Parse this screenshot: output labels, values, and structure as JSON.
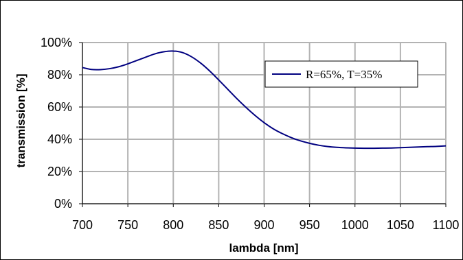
{
  "chart_data": {
    "type": "line",
    "title": "",
    "xlabel": "lambda [nm]",
    "ylabel": "transmission [%]",
    "xlim": [
      700,
      1100
    ],
    "ylim": [
      0,
      100
    ],
    "x_ticks": [
      "700",
      "750",
      "800",
      "850",
      "900",
      "950",
      "1000",
      "1050",
      "1100"
    ],
    "y_ticks": [
      "0%",
      "20%",
      "40%",
      "60%",
      "80%",
      "100%"
    ],
    "grid": true,
    "legend_position": "top-right",
    "series": [
      {
        "name": "R=65%, T=35%",
        "color": "#000080",
        "x": [
          700,
          710,
          720,
          730,
          740,
          750,
          760,
          770,
          780,
          790,
          800,
          810,
          820,
          830,
          840,
          850,
          860,
          870,
          880,
          890,
          900,
          910,
          920,
          930,
          940,
          950,
          960,
          970,
          980,
          990,
          1000,
          1010,
          1020,
          1030,
          1040,
          1050,
          1060,
          1070,
          1080,
          1090,
          1100
        ],
        "values": [
          84.5,
          83.3,
          83.2,
          83.8,
          85.0,
          86.8,
          88.9,
          91.0,
          93.0,
          94.3,
          94.7,
          93.8,
          91.2,
          87.3,
          82.4,
          76.8,
          71.0,
          65.2,
          59.8,
          54.8,
          50.3,
          46.5,
          43.5,
          41.0,
          39.0,
          37.5,
          36.3,
          35.5,
          35.0,
          34.7,
          34.5,
          34.4,
          34.4,
          34.5,
          34.6,
          34.8,
          35.0,
          35.2,
          35.4,
          35.6,
          35.9
        ]
      }
    ]
  }
}
